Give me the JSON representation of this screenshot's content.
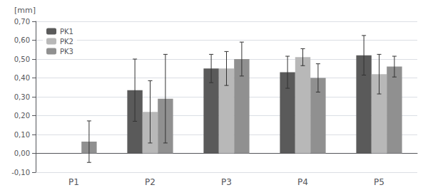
{
  "chart_data": {
    "type": "bar",
    "categories": [
      "P1",
      "P2",
      "P3",
      "P4",
      "P5"
    ],
    "series": [
      {
        "name": "PK1",
        "color": "#5a5a5a",
        "values": [
          null,
          0.335,
          0.45,
          0.43,
          0.52
        ],
        "errors": [
          null,
          0.165,
          0.075,
          0.085,
          0.105
        ]
      },
      {
        "name": "PK2",
        "color": "#b8b8b8",
        "values": [
          null,
          0.22,
          0.45,
          0.51,
          0.42
        ],
        "errors": [
          null,
          0.165,
          0.09,
          0.045,
          0.105
        ]
      },
      {
        "name": "PK3",
        "color": "#909090",
        "values": [
          0.062,
          0.29,
          0.5,
          0.4,
          0.46
        ],
        "errors": [
          0.11,
          0.235,
          0.09,
          0.075,
          0.055
        ]
      }
    ],
    "ylabel": "[mm]",
    "ylim": [
      -0.1,
      0.7
    ],
    "yticks": [
      {
        "value": -0.1,
        "label": "-0,10"
      },
      {
        "value": 0.0,
        "label": "0,00"
      },
      {
        "value": 0.1,
        "label": "0,10"
      },
      {
        "value": 0.2,
        "label": "0,20"
      },
      {
        "value": 0.3,
        "label": "0,30"
      },
      {
        "value": 0.4,
        "label": "0,40"
      },
      {
        "value": 0.5,
        "label": "0,50"
      },
      {
        "value": 0.6,
        "label": "0,60"
      },
      {
        "value": 0.7,
        "label": "0,70"
      }
    ],
    "grid": true,
    "legend": "upper left"
  }
}
